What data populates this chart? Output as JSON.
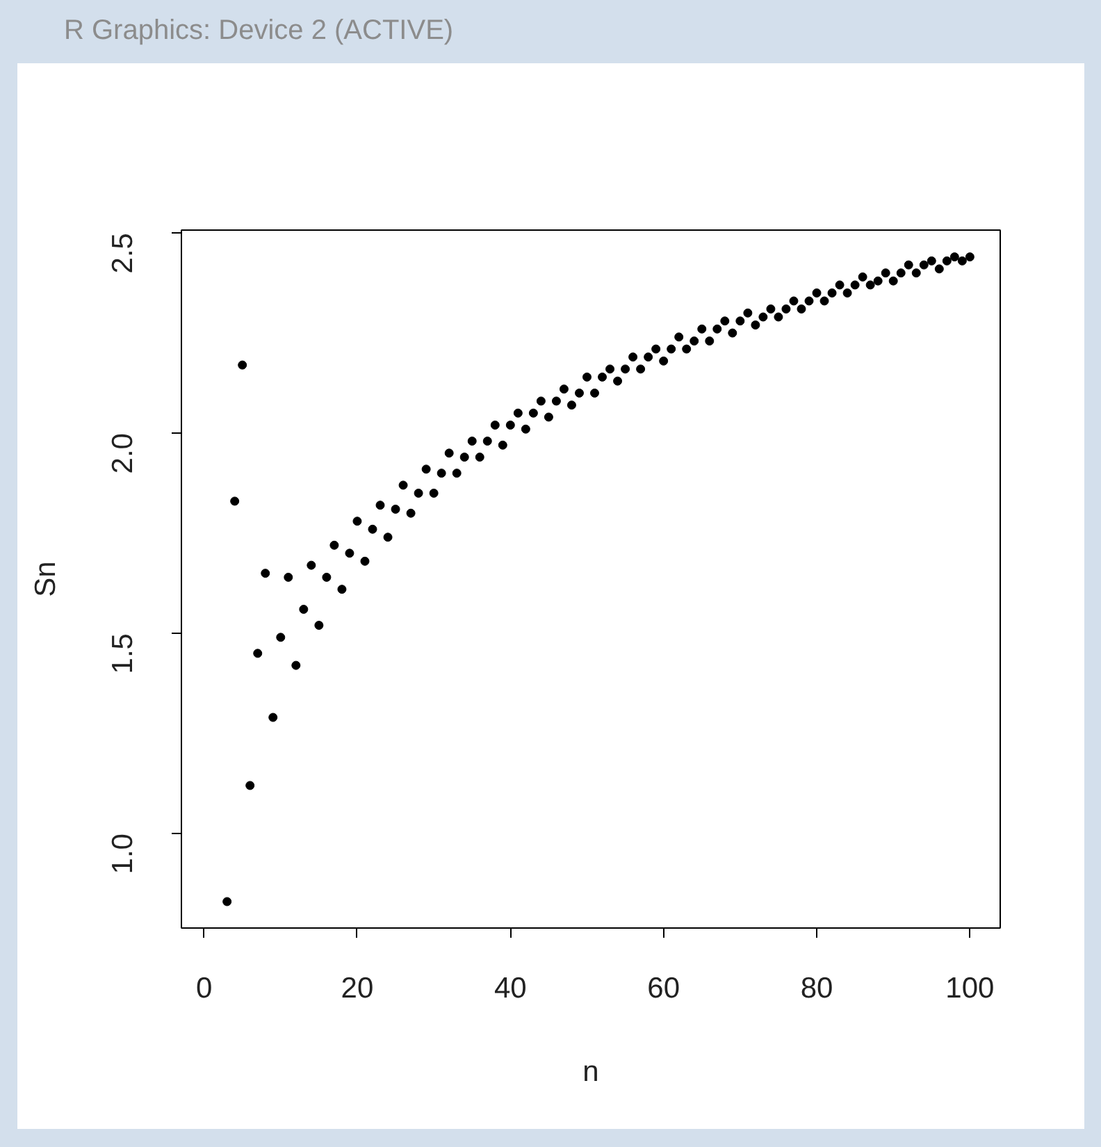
{
  "chart_data": {
    "type": "scatter",
    "title": "R Graphics: Device 2 (ACTIVE)",
    "xlabel": "n",
    "ylabel": "Sn",
    "x": [
      3,
      4,
      5,
      6,
      7,
      8,
      9,
      10,
      11,
      12,
      13,
      14,
      15,
      16,
      17,
      18,
      19,
      20,
      21,
      22,
      23,
      24,
      25,
      26,
      27,
      28,
      29,
      30,
      31,
      32,
      33,
      34,
      35,
      36,
      37,
      38,
      39,
      40,
      41,
      42,
      43,
      44,
      45,
      46,
      47,
      48,
      49,
      50,
      51,
      52,
      53,
      54,
      55,
      56,
      57,
      58,
      59,
      60,
      61,
      62,
      63,
      64,
      65,
      66,
      67,
      68,
      69,
      70,
      71,
      72,
      73,
      74,
      75,
      76,
      77,
      78,
      79,
      80,
      81,
      82,
      83,
      84,
      85,
      86,
      87,
      88,
      89,
      90,
      91,
      92,
      93,
      94,
      95,
      96,
      97,
      98,
      99,
      100
    ],
    "series": [
      {
        "color": "#000000",
        "values": [
          0.83,
          1.83,
          2.17,
          1.12,
          1.45,
          1.65,
          1.29,
          1.49,
          1.64,
          1.42,
          1.56,
          1.67,
          1.52,
          1.64,
          1.72,
          1.61,
          1.7,
          1.78,
          1.68,
          1.76,
          1.82,
          1.74,
          1.81,
          1.87,
          1.8,
          1.85,
          1.91,
          1.85,
          1.9,
          1.95,
          1.9,
          1.94,
          1.98,
          1.94,
          1.98,
          2.02,
          1.97,
          2.02,
          2.05,
          2.01,
          2.05,
          2.08,
          2.04,
          2.08,
          2.11,
          2.07,
          2.1,
          2.14,
          2.1,
          2.14,
          2.16,
          2.13,
          2.16,
          2.19,
          2.16,
          2.19,
          2.21,
          2.18,
          2.21,
          2.24,
          2.21,
          2.23,
          2.26,
          2.23,
          2.26,
          2.28,
          2.25,
          2.28,
          2.3,
          2.27,
          2.29,
          2.31,
          2.29,
          2.31,
          2.33,
          2.31,
          2.33,
          2.35,
          2.33,
          2.35,
          2.37,
          2.35,
          2.37,
          2.39,
          2.37,
          2.38,
          2.4,
          2.38,
          2.4,
          2.42,
          2.4,
          2.42,
          2.43,
          2.41,
          2.43,
          2.44,
          2.43,
          2.44
        ]
      }
    ],
    "xlim": [
      -2.96,
      103.96
    ],
    "ylim": [
      0.764,
      2.507
    ],
    "xticks": [
      0,
      20,
      40,
      60,
      80,
      100
    ],
    "yticks": [
      {
        "value": 1.0,
        "label": "1.0"
      },
      1.5,
      {
        "value": 2.0,
        "label": "2.0"
      },
      2.5
    ],
    "marker": "circle"
  }
}
